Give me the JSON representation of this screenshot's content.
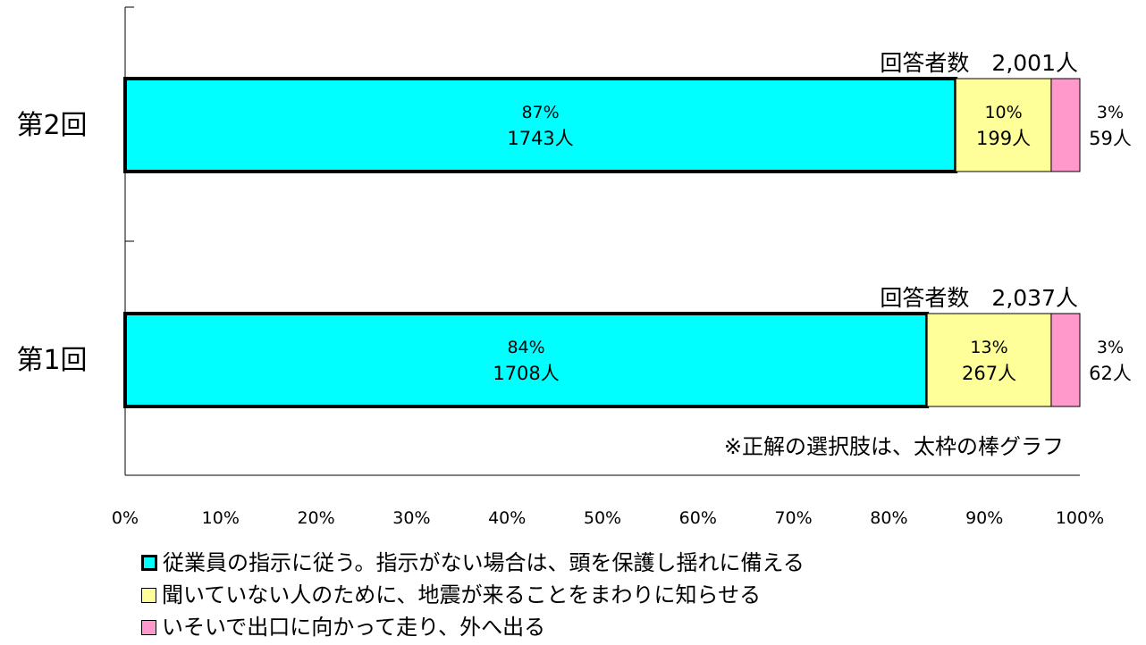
{
  "chart_data": {
    "type": "bar",
    "orientation": "horizontal",
    "stacked": "percent",
    "categories": [
      "第2回",
      "第1回"
    ],
    "respondent_labels": [
      "回答者数　2,001人",
      "回答者数　2,037人"
    ],
    "totals": [
      2001,
      2037
    ],
    "series": [
      {
        "name": "従業員の指示に従う。指示がない場合は、頭を保護し揺れに備える",
        "color": "#00ffff",
        "correct_answer": true,
        "percent": [
          87,
          84
        ],
        "counts": [
          1743,
          1708
        ],
        "percent_labels": [
          "87%",
          "84%"
        ],
        "count_labels": [
          "1743人",
          "1708人"
        ]
      },
      {
        "name": "聞いていない人のために、地震が来ることをまわりに知らせる",
        "color": "#ffff99",
        "correct_answer": false,
        "percent": [
          10,
          13
        ],
        "counts": [
          199,
          267
        ],
        "percent_labels": [
          "10%",
          "13%"
        ],
        "count_labels": [
          "199人",
          "267人"
        ]
      },
      {
        "name": "いそいで出口に向かって走り、外へ出る",
        "color": "#ff99cc",
        "correct_answer": false,
        "percent": [
          3,
          3
        ],
        "counts": [
          59,
          62
        ],
        "percent_labels": [
          "3%",
          "3%"
        ],
        "count_labels": [
          "59人",
          "62人"
        ]
      }
    ],
    "xlim": [
      0,
      100
    ],
    "x_ticks": [
      "0%",
      "10%",
      "20%",
      "30%",
      "40%",
      "50%",
      "60%",
      "70%",
      "80%",
      "90%",
      "100%"
    ],
    "annotation": "※正解の選択肢は、太枠の棒グラフ",
    "grid": false,
    "legend_position": "bottom"
  }
}
